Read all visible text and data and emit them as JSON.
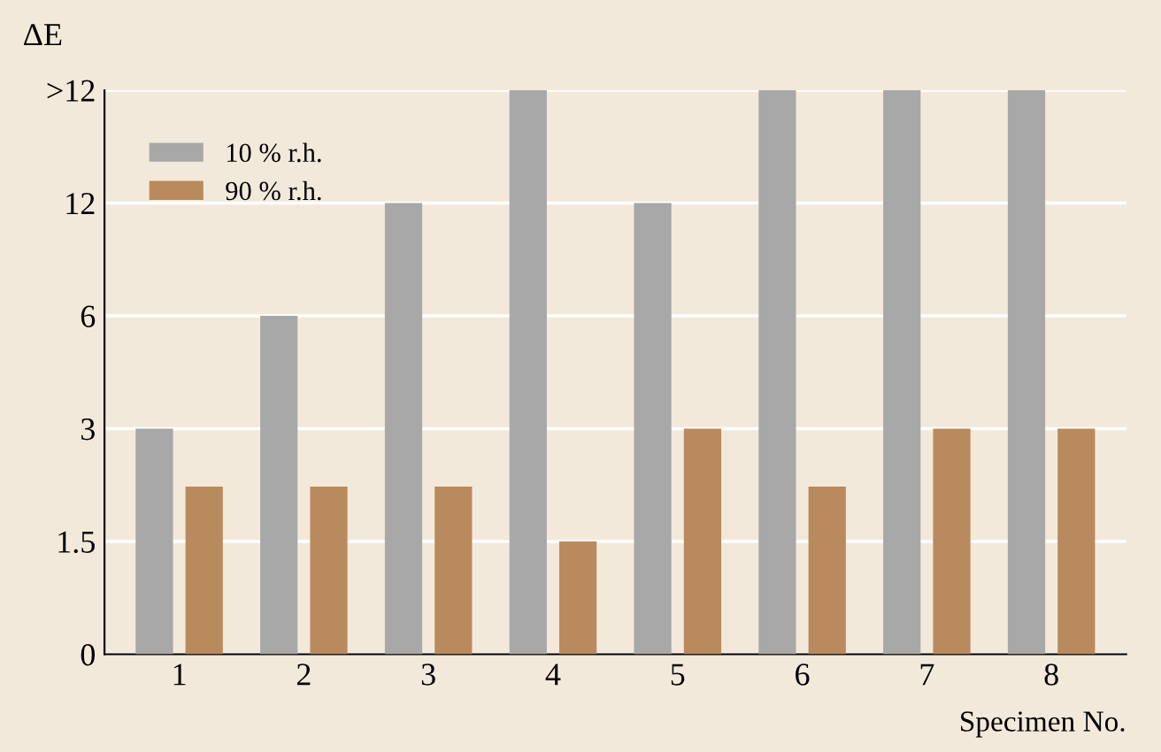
{
  "chart_data": {
    "type": "bar",
    "ylabel": "ΔE",
    "xlabel": "Specimen No.",
    "categories": [
      "1",
      "2",
      "3",
      "4",
      "5",
      "6",
      "7",
      "8"
    ],
    "series": [
      {
        "name": "10 % r.h.",
        "color": "#a8a8a8",
        "values": [
          3,
          6,
          12,
          24,
          12,
          24,
          24,
          24
        ]
      },
      {
        "name": "90 % r.h.",
        "color": "#b98a5e",
        "values": [
          2.1,
          2.1,
          2.1,
          1.5,
          3,
          2.1,
          3,
          3
        ]
      }
    ],
    "log": "y",
    "ylim": [
      0,
      24
    ],
    "yticks": [
      0,
      1.5,
      3,
      6,
      12,
      {
        "value": 24,
        "label": ">12"
      }
    ],
    "grid": "y",
    "legend": "top left"
  }
}
